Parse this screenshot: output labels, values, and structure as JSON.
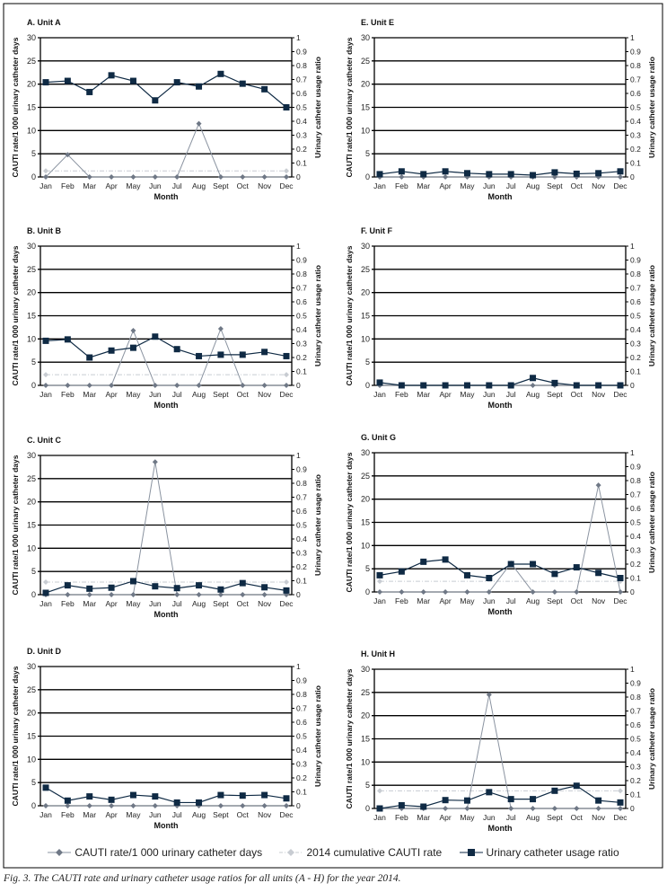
{
  "chart_data": [
    {
      "type": "line",
      "title": "A. Unit A",
      "xlabel": "Month",
      "ylabel": "CAUTI rate/1 000 urinary catheter days",
      "y2label": "Urinary catheter usage ratio",
      "ylim": [
        0,
        30
      ],
      "y2lim": [
        0,
        1
      ],
      "cauti_rate": [
        0,
        4.8,
        0,
        0,
        0,
        0,
        0,
        11.5,
        0,
        0,
        0,
        0
      ],
      "cumulative_rate": 1.3,
      "usage_ratio": [
        0.68,
        0.69,
        0.61,
        0.73,
        0.69,
        0.55,
        0.68,
        0.65,
        0.74,
        0.67,
        0.63,
        0.5
      ]
    },
    {
      "type": "line",
      "title": "B. Unit B",
      "xlabel": "Month",
      "ylabel": "CAUTI rate/1 000 urinary catheter days",
      "y2label": "Urinary catheter usage ratio",
      "ylim": [
        0,
        30
      ],
      "y2lim": [
        0,
        1
      ],
      "cauti_rate": [
        0,
        0,
        0,
        0,
        11.8,
        0,
        0,
        0,
        12.2,
        0,
        0,
        0
      ],
      "cumulative_rate": 2.3,
      "usage_ratio": [
        0.32,
        0.33,
        0.2,
        0.25,
        0.27,
        0.35,
        0.26,
        0.21,
        0.22,
        0.22,
        0.24,
        0.21
      ]
    },
    {
      "type": "line",
      "title": "C. Unit C",
      "xlabel": "Month",
      "ylabel": "CAUTI rate/1 000 urinary catheter days",
      "y2label": "Urinary catheter usage ratio",
      "ylim": [
        0,
        30
      ],
      "y2lim": [
        0,
        1
      ],
      "cauti_rate": [
        0,
        0,
        0,
        0,
        0,
        28.6,
        0,
        0,
        0,
        0,
        0,
        0
      ],
      "cumulative_rate": 2.7,
      "usage_ratio": [
        0.013,
        0.067,
        0.043,
        0.05,
        0.097,
        0.06,
        0.047,
        0.067,
        0.037,
        0.083,
        0.053,
        0.03
      ]
    },
    {
      "type": "line",
      "title": "D. Unit D",
      "xlabel": "Month",
      "ylabel": "CAUTI rate/1 000 urinary catheter days",
      "y2label": "Urinary catheter usage ratio",
      "ylim": [
        0,
        30
      ],
      "y2lim": [
        0,
        1
      ],
      "cauti_rate": [
        0,
        0,
        0,
        0,
        0,
        0,
        0,
        0,
        0,
        0,
        0,
        0
      ],
      "cumulative_rate": 0,
      "usage_ratio": [
        0.13,
        0.037,
        0.067,
        0.043,
        0.077,
        0.067,
        0.023,
        0.023,
        0.077,
        0.073,
        0.077,
        0.053
      ]
    },
    {
      "type": "line",
      "title": "E. Unit E",
      "xlabel": "Month",
      "ylabel": "CAUTI rate/1 000 urinary catheter days",
      "y2label": "Urinary catheter usage ratio",
      "ylim": [
        0,
        30
      ],
      "y2lim": [
        0,
        1
      ],
      "cauti_rate": [
        0,
        0,
        0,
        0,
        0,
        0,
        0,
        0,
        0,
        0,
        0,
        0
      ],
      "cumulative_rate": 0,
      "usage_ratio": [
        0.02,
        0.04,
        0.02,
        0.04,
        0.027,
        0.02,
        0.02,
        0.013,
        0.033,
        0.023,
        0.027,
        0.04
      ]
    },
    {
      "type": "line",
      "title": "F. Unit F",
      "xlabel": "Month",
      "ylabel": "CAUTI rate/1 000 urinary catheter days",
      "y2label": "Urinary catheter usage ratio",
      "ylim": [
        0,
        30
      ],
      "y2lim": [
        0,
        1
      ],
      "cauti_rate": [
        0,
        0,
        0,
        0,
        0,
        0,
        0,
        0,
        0,
        0,
        0,
        0
      ],
      "cumulative_rate": 0,
      "usage_ratio": [
        0.02,
        0,
        0,
        0,
        0,
        0,
        0,
        0.053,
        0.017,
        0,
        0,
        0
      ]
    },
    {
      "type": "line",
      "title": "G. Unit G",
      "xlabel": "Month",
      "ylabel": "CAUTI rate/1 000 urinary catheter days",
      "y2label": "Urinary catheter usage ratio",
      "ylim": [
        0,
        30
      ],
      "y2lim": [
        0,
        1
      ],
      "cauti_rate": [
        0,
        0,
        0,
        0,
        0,
        0,
        6.2,
        0,
        0,
        0,
        23,
        0
      ],
      "cumulative_rate": 2.3,
      "usage_ratio": [
        0.12,
        0.147,
        0.217,
        0.233,
        0.12,
        0.1,
        0.2,
        0.2,
        0.13,
        0.177,
        0.137,
        0.1
      ]
    },
    {
      "type": "line",
      "title": "H. Unit H",
      "xlabel": "Month",
      "ylabel": "CAUTI rate/1 000 urinary catheter days",
      "y2label": "Urinary catheter usage ratio",
      "ylim": [
        0,
        30
      ],
      "y2lim": [
        0,
        1
      ],
      "cauti_rate": [
        0,
        0,
        0,
        0,
        0,
        24.5,
        0,
        0,
        0,
        0,
        0,
        0
      ],
      "cumulative_rate": 3.8,
      "usage_ratio": [
        0,
        0.023,
        0.013,
        0.06,
        0.057,
        0.117,
        0.067,
        0.067,
        0.127,
        0.163,
        0.057,
        0.043
      ]
    }
  ],
  "categories": [
    "Jan",
    "Feb",
    "Mar",
    "Apr",
    "May",
    "Jun",
    "Jul",
    "Aug",
    "Sept",
    "Oct",
    "Nov",
    "Dec"
  ],
  "yticks": [
    "0",
    "5",
    "10",
    "15",
    "20",
    "25",
    "30"
  ],
  "y2ticks": [
    "0",
    "0.1",
    "0.2",
    "0.3",
    "0.4",
    "0.5",
    "0.6",
    "0.7",
    "0.8",
    "0.9",
    "1"
  ],
  "legend": {
    "cauti": "CAUTI rate/1 000 urinary catheter days",
    "cumulative": "2014 cumulative CAUTI rate",
    "usage": "Urinary catheter usage ratio"
  },
  "colors": {
    "cauti": "#8a93a0",
    "cumulative": "#c8ccd2",
    "usage": "#0f2a44",
    "grid": "#000000"
  },
  "caption": "Fig. 3. The CAUTI rate and urinary catheter usage ratios for all units (A - H) for the year 2014."
}
